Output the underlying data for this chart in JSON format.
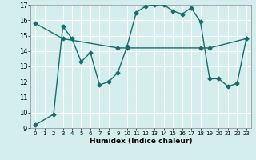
{
  "title": "",
  "xlabel": "Humidex (Indice chaleur)",
  "bg_color": "#d4eeee",
  "grid_color": "#ffffff",
  "line_color": "#1a6b6b",
  "xlim": [
    -0.5,
    23.5
  ],
  "ylim": [
    9,
    17
  ],
  "xticks": [
    0,
    1,
    2,
    3,
    4,
    5,
    6,
    7,
    8,
    9,
    10,
    11,
    12,
    13,
    14,
    15,
    16,
    17,
    18,
    19,
    20,
    21,
    22,
    23
  ],
  "yticks": [
    9,
    10,
    11,
    12,
    13,
    14,
    15,
    16,
    17
  ],
  "series1_x": [
    0,
    2,
    3,
    4,
    5,
    6,
    7,
    8,
    9,
    10,
    11,
    12,
    13,
    14,
    15,
    16,
    17,
    18,
    19,
    20,
    21,
    22,
    23
  ],
  "series1_y": [
    9.2,
    9.9,
    15.6,
    14.8,
    13.3,
    13.9,
    11.8,
    12.0,
    12.6,
    14.3,
    16.5,
    16.9,
    17.0,
    17.0,
    16.6,
    16.4,
    16.8,
    15.9,
    12.2,
    12.2,
    11.7,
    11.9,
    14.8
  ],
  "series2_x": [
    0,
    3,
    9,
    10,
    18,
    19,
    23
  ],
  "series2_y": [
    15.8,
    14.8,
    14.2,
    14.2,
    14.2,
    14.2,
    14.8
  ],
  "marker": "D",
  "markersize": 2.5,
  "linewidth": 1.0
}
